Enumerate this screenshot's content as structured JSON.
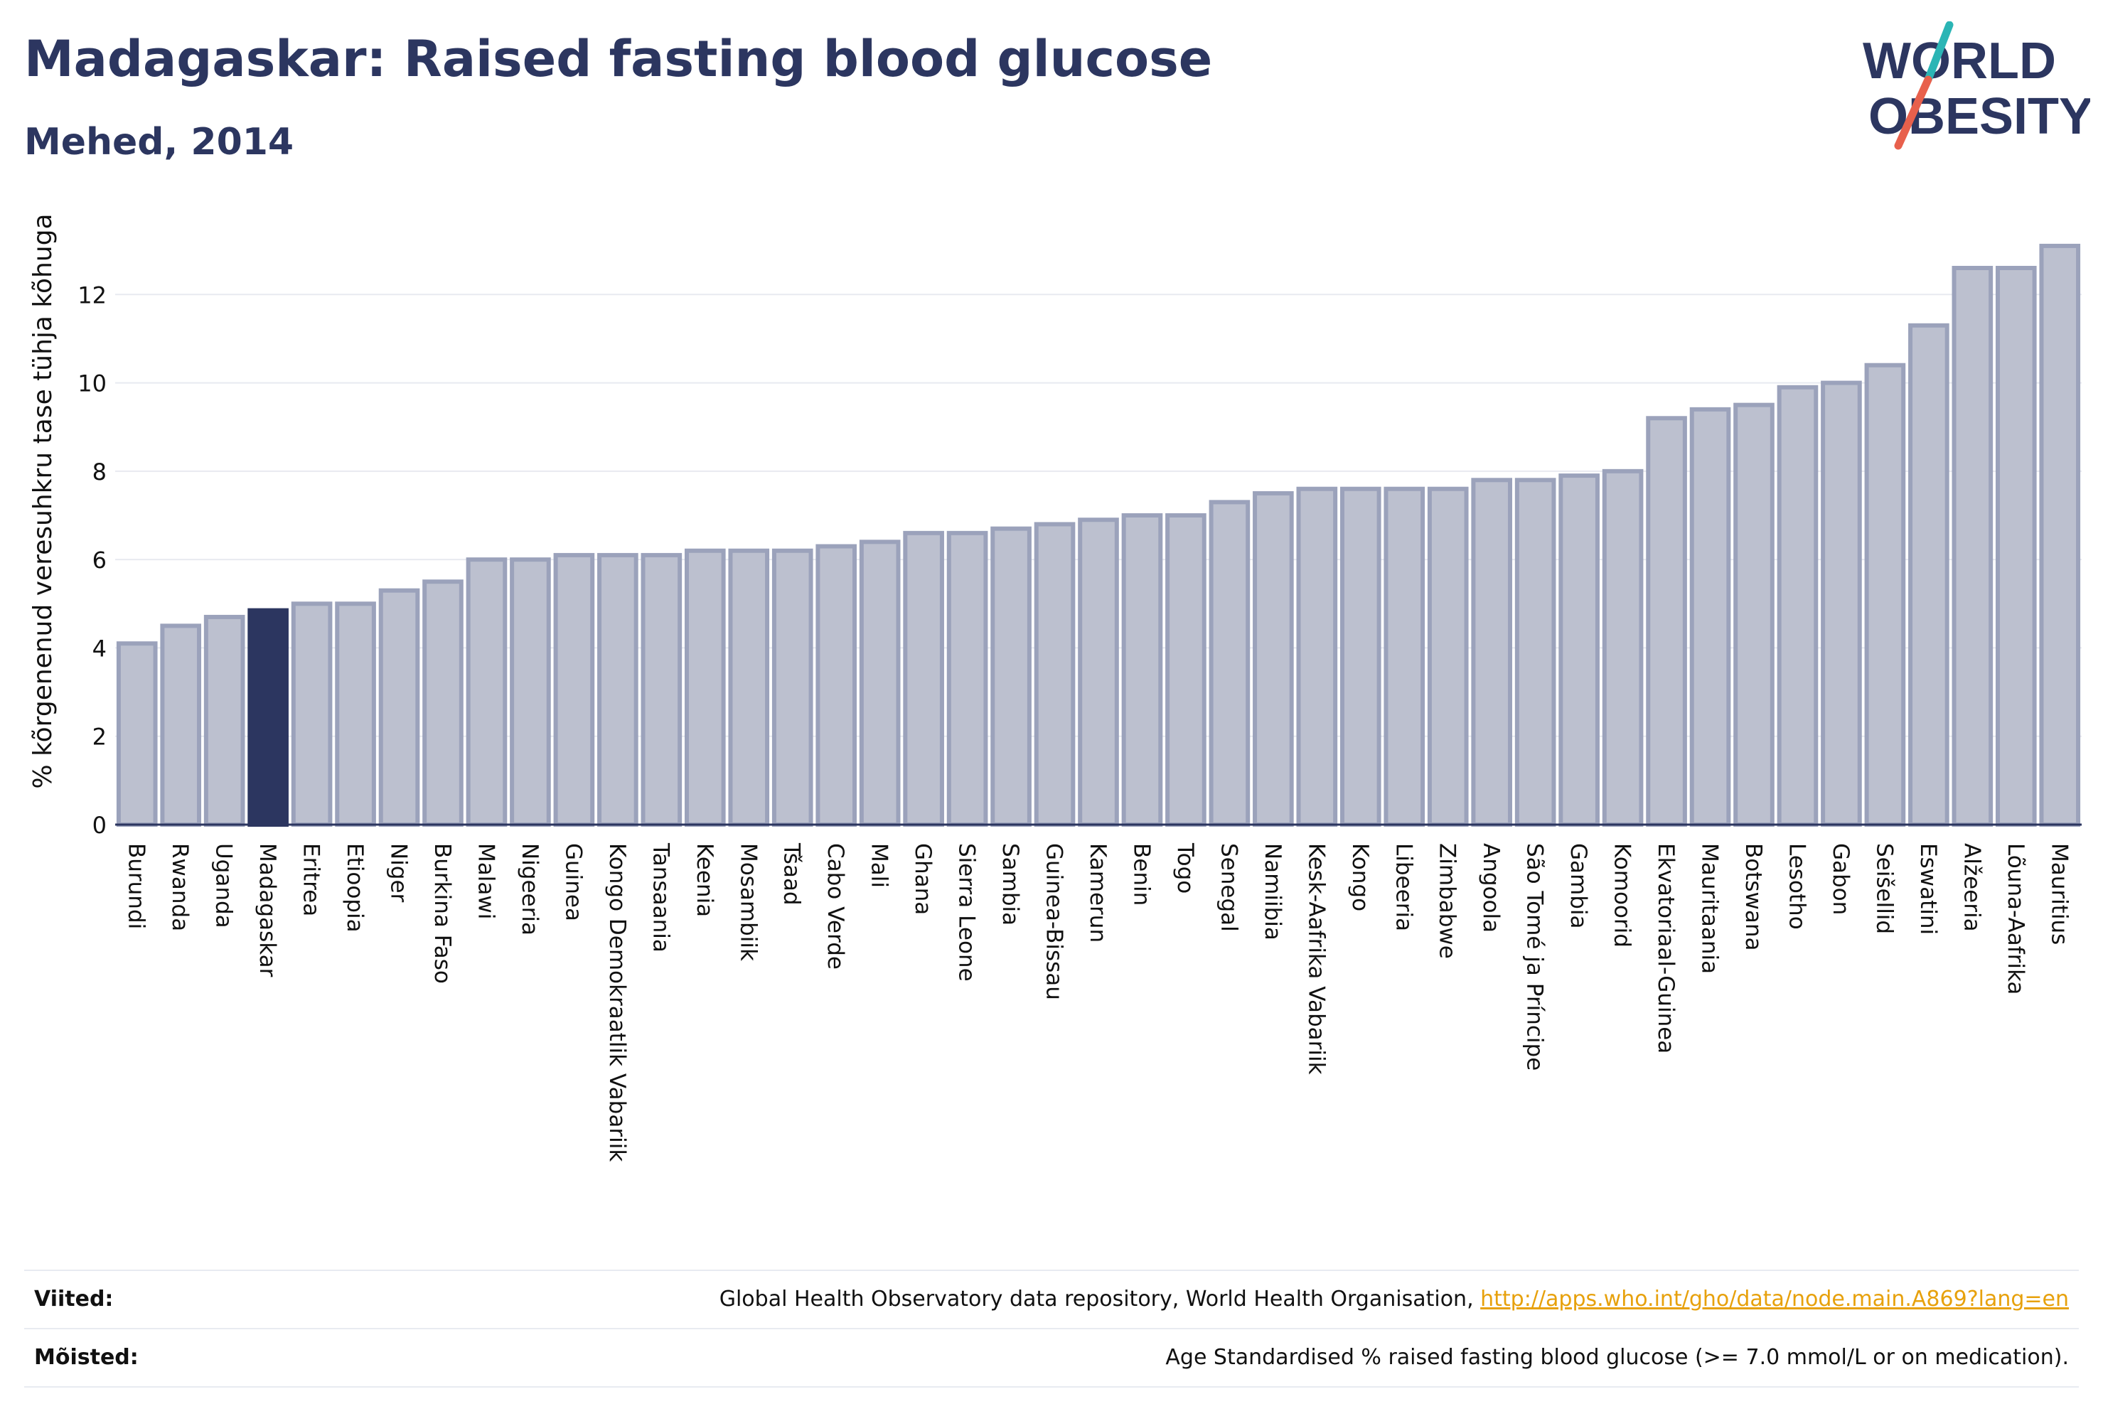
{
  "header": {
    "title": "Madagaskar: Raised fasting blood glucose",
    "subtitle": "Mehed, 2014"
  },
  "logo": {
    "line1": "WORLD",
    "line2": "OBESITY",
    "colors": {
      "text": "#2c3660",
      "slash_top": "#2bb5b5",
      "slash_bottom": "#e8604c"
    }
  },
  "chart_data": {
    "type": "bar",
    "ylabel": "% kõrgenenud veresuhkru tase tühja kõhuga",
    "ylim": [
      0,
      14
    ],
    "yticks": [
      0,
      2,
      4,
      6,
      8,
      10,
      12
    ],
    "grid": true,
    "highlight": "Madagaskar",
    "colors": {
      "bar": "#bcc0cf",
      "bar_stroke": "#9ba2bb",
      "highlight": "#2c3660",
      "grid": "#e8eaf0"
    },
    "categories": [
      "Burundi",
      "Rwanda",
      "Uganda",
      "Madagaskar",
      "Eritrea",
      "Etioopia",
      "Niger",
      "Burkina Faso",
      "Malawi",
      "Nigeeria",
      "Guinea",
      "Kongo Demokraatlik Vabariik",
      "Tansaania",
      "Keenia",
      "Mosambiik",
      "Tšaad",
      "Cabo Verde",
      "Mali",
      "Ghana",
      "Sierra Leone",
      "Sambia",
      "Guinea-Bissau",
      "Kamerun",
      "Benin",
      "Togo",
      "Senegal",
      "Namiibia",
      "Kesk-Aafrika Vabariik",
      "Kongo",
      "Libeeria",
      "Zimbabwe",
      "Angoola",
      "São Tomé ja Príncipe",
      "Gambia",
      "Komoorid",
      "Ekvatoriaal-Guinea",
      "Mauritaania",
      "Botswana",
      "Lesotho",
      "Gabon",
      "Seišellid",
      "Eswatini",
      "Alžeeria",
      "Lõuna-Aafrika",
      "Mauritius"
    ],
    "values": [
      4.1,
      4.5,
      4.7,
      4.85,
      5.0,
      5.0,
      5.3,
      5.5,
      6.0,
      6.0,
      6.1,
      6.1,
      6.1,
      6.2,
      6.2,
      6.2,
      6.3,
      6.4,
      6.6,
      6.6,
      6.7,
      6.8,
      6.9,
      7.0,
      7.0,
      7.3,
      7.5,
      7.6,
      7.6,
      7.6,
      7.6,
      7.8,
      7.8,
      7.9,
      8.0,
      9.2,
      9.4,
      9.5,
      9.9,
      10.0,
      10.4,
      11.3,
      12.6,
      12.6,
      13.1
    ]
  },
  "footer": {
    "sources_label": "Viited:",
    "sources_text": "Global Health Observatory data repository, World Health Organisation, ",
    "sources_link": "http://apps.who.int/gho/data/node.main.A869?lang=en",
    "definitions_label": "Mõisted:",
    "definitions_text": "Age Standardised % raised fasting blood glucose (>= 7.0 mmol/L or on medication)."
  }
}
